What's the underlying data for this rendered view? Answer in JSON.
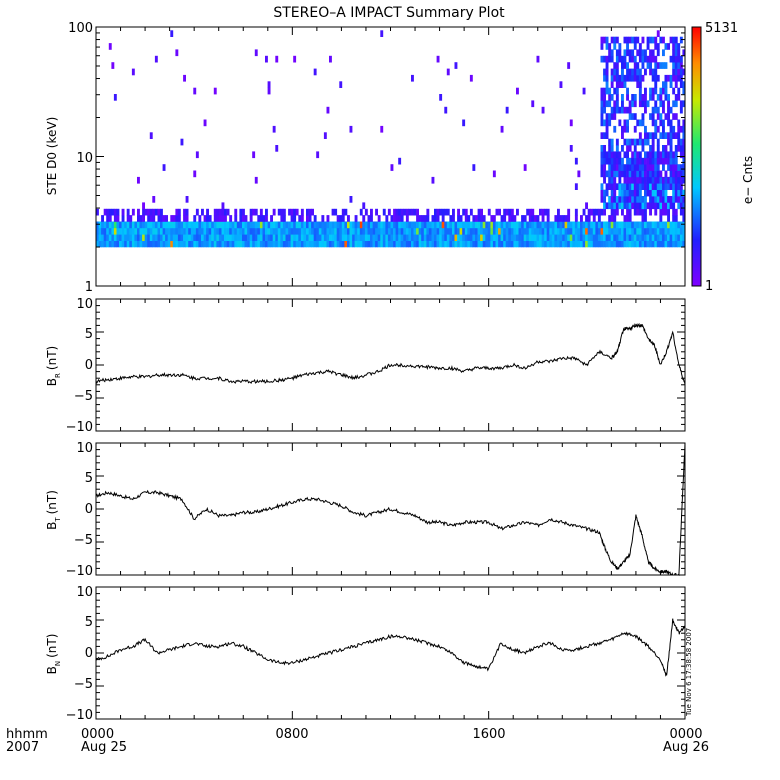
{
  "chart_data": [
    {
      "type": "heatmap",
      "title": "STEREO–A IMPACT Summary Plot",
      "ylabel": "STE D0 (keV)",
      "yscale": "log",
      "ylim": [
        1,
        100
      ],
      "ytick_labels": [
        "1",
        "10",
        "100"
      ],
      "colorbar": {
        "label": "e− Cnts",
        "min_label": "1",
        "max_label": "5131",
        "min": 1,
        "max": 5131,
        "colormap": "rainbow (purple→blue→cyan→green→yellow→red)"
      },
      "features": {
        "persistent_band_keV": [
          2,
          3
        ],
        "enhancement_start_hour": 20.5,
        "enhancement_end_hour": 24
      }
    },
    {
      "type": "line",
      "ylabel_main": "B",
      "ylabel_sub": "R",
      "ylabel_unit": "(nT)",
      "ylim": [
        -10,
        10
      ],
      "ytick_labels": [
        "10",
        "5",
        "0",
        "−5",
        "−10"
      ],
      "x_hours": [
        0,
        0.5,
        1,
        1.5,
        2,
        2.5,
        3,
        3.5,
        4,
        4.5,
        5,
        5.5,
        6,
        6.5,
        7,
        7.5,
        8,
        8.5,
        9,
        9.5,
        10,
        10.5,
        11,
        11.5,
        12,
        12.5,
        13,
        13.5,
        14,
        14.5,
        15,
        15.5,
        16,
        16.5,
        17,
        17.5,
        18,
        18.5,
        19,
        19.5,
        20,
        20.5,
        21,
        21.25,
        21.5,
        21.75,
        22,
        22.25,
        22.5,
        22.75,
        23,
        23.25,
        23.5,
        23.75,
        24
      ],
      "y": [
        -2.5,
        -2.2,
        -2.0,
        -1.8,
        -1.8,
        -1.5,
        -1.5,
        -1.5,
        -2.0,
        -2.0,
        -2.0,
        -2.5,
        -2.5,
        -2.5,
        -2.5,
        -2.3,
        -2.0,
        -1.5,
        -1.2,
        -1.0,
        -1.5,
        -2.0,
        -1.5,
        -1.0,
        0.0,
        0.0,
        -0.2,
        -0.3,
        -0.5,
        -0.5,
        -1.0,
        -0.5,
        -0.5,
        -0.5,
        0.0,
        -0.5,
        0.5,
        0.5,
        1.0,
        1.0,
        0.0,
        2.0,
        1.0,
        2.0,
        5.5,
        5.5,
        6.0,
        6.0,
        4.0,
        3.0,
        0.0,
        2.0,
        5.0,
        0.0,
        -3.0
      ]
    },
    {
      "type": "line",
      "ylabel_main": "B",
      "ylabel_sub": "T",
      "ylabel_unit": "(nT)",
      "ylim": [
        -10,
        10
      ],
      "ytick_labels": [
        "10",
        "5",
        "0",
        "−5",
        "−10"
      ],
      "x_hours": [
        0,
        0.5,
        1,
        1.5,
        2,
        2.5,
        3,
        3.5,
        4,
        4.5,
        5,
        5.5,
        6,
        6.5,
        7,
        7.5,
        8,
        8.5,
        9,
        9.5,
        10,
        10.5,
        11,
        11.5,
        12,
        12.5,
        13,
        13.5,
        14,
        14.5,
        15,
        15.5,
        16,
        16.5,
        17,
        17.5,
        18,
        18.5,
        19,
        19.5,
        20,
        20.5,
        20.75,
        21,
        21.25,
        21.5,
        21.75,
        22,
        22.25,
        22.5,
        22.75,
        23,
        23.25,
        23.5,
        23.75,
        24
      ],
      "y": [
        2.0,
        2.5,
        2.0,
        1.5,
        2.5,
        2.5,
        2.0,
        1.5,
        -1.5,
        0.0,
        -1.0,
        -1.0,
        -0.5,
        -0.5,
        0.0,
        0.5,
        1.0,
        1.5,
        1.5,
        1.0,
        0.5,
        -0.5,
        -1.0,
        -0.5,
        0.0,
        -0.5,
        -1.0,
        -2.0,
        -2.0,
        -2.5,
        -2.0,
        -2.0,
        -2.0,
        -3.0,
        -2.5,
        -2.0,
        -2.5,
        -1.5,
        -2.0,
        -2.5,
        -3.0,
        -3.5,
        -6.0,
        -8.0,
        -9.0,
        -8.0,
        -7.0,
        -1.0,
        -4.0,
        -8.0,
        -9.0,
        -9.5,
        -9.5,
        -10.0,
        -10.0,
        10.0
      ]
    },
    {
      "type": "line",
      "ylabel_main": "B",
      "ylabel_sub": "N",
      "ylabel_unit": "(nT)",
      "ylim": [
        -10,
        10
      ],
      "ytick_labels": [
        "10",
        "5",
        "0",
        "−5",
        "−10"
      ],
      "x_hours": [
        0,
        0.5,
        1,
        1.5,
        2,
        2.5,
        3,
        3.5,
        4,
        4.5,
        5,
        5.5,
        6,
        6.5,
        7,
        7.5,
        8,
        8.5,
        9,
        9.5,
        10,
        10.5,
        11,
        11.5,
        12,
        12.5,
        13,
        13.5,
        14,
        14.5,
        15,
        15.5,
        16,
        16.5,
        17,
        17.5,
        18,
        18.5,
        19,
        19.5,
        20,
        20.5,
        21,
        21.5,
        22,
        22.5,
        23,
        23.25,
        23.5,
        23.75,
        24
      ],
      "y": [
        -1.0,
        -0.5,
        0.5,
        1.0,
        2.0,
        0.0,
        0.5,
        1.0,
        1.5,
        1.0,
        1.0,
        1.5,
        1.0,
        0.0,
        -1.0,
        -1.5,
        -1.5,
        -1.0,
        -0.5,
        0.0,
        0.5,
        1.0,
        1.5,
        2.0,
        2.5,
        2.5,
        2.0,
        1.5,
        1.0,
        0.0,
        -1.5,
        -2.0,
        -2.5,
        1.5,
        0.5,
        0.0,
        1.0,
        1.5,
        0.5,
        0.5,
        1.0,
        1.5,
        2.0,
        3.0,
        2.5,
        1.0,
        -1.0,
        -3.5,
        5.0,
        3.0,
        4.0
      ]
    }
  ],
  "x_axis": {
    "range_hours": [
      0,
      24
    ],
    "tick_labels": [
      "0000",
      "0800",
      "1600",
      "0000"
    ],
    "date_labels": [
      "Aug 25",
      "Aug 26"
    ],
    "row_label_1": "hhmm",
    "row_label_2": "2007"
  },
  "timestamp": "Tue Nov  6 17:38:58 2007",
  "colors": {
    "line": "#000000",
    "background": "#ffffff"
  }
}
